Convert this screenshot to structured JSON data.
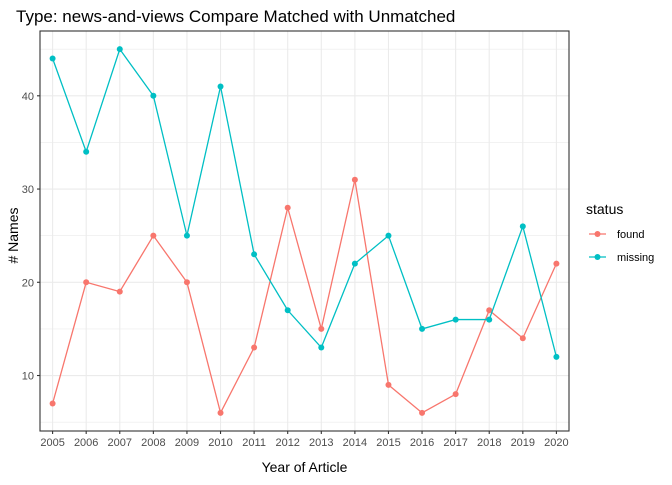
{
  "chart_data": {
    "type": "line",
    "title": "Type: news-and-views Compare Matched with Unmatched",
    "xlabel": "Year of Article",
    "ylabel": "# Names",
    "x": [
      2005,
      2006,
      2007,
      2008,
      2009,
      2010,
      2011,
      2012,
      2013,
      2014,
      2015,
      2016,
      2017,
      2018,
      2019,
      2020
    ],
    "xticks": [
      "2005",
      "2006",
      "2007",
      "2008",
      "2009",
      "2010",
      "2011",
      "2012",
      "2013",
      "2014",
      "2015",
      "2016",
      "2017",
      "2018",
      "2019",
      "2020"
    ],
    "yticks": [
      10,
      20,
      30,
      40
    ],
    "ylim": [
      4.05,
      46.95
    ],
    "grid": true,
    "legend": {
      "title": "status",
      "position": "right"
    },
    "series": [
      {
        "name": "found",
        "color": "#F8766D",
        "values": [
          7,
          20,
          19,
          25,
          20,
          6,
          13,
          28,
          15,
          31,
          9,
          6,
          8,
          17,
          14,
          22
        ]
      },
      {
        "name": "missing",
        "color": "#00BFC4",
        "values": [
          44,
          34,
          45,
          40,
          25,
          41,
          23,
          17,
          13,
          22,
          25,
          15,
          16,
          16,
          26,
          12
        ]
      }
    ]
  }
}
